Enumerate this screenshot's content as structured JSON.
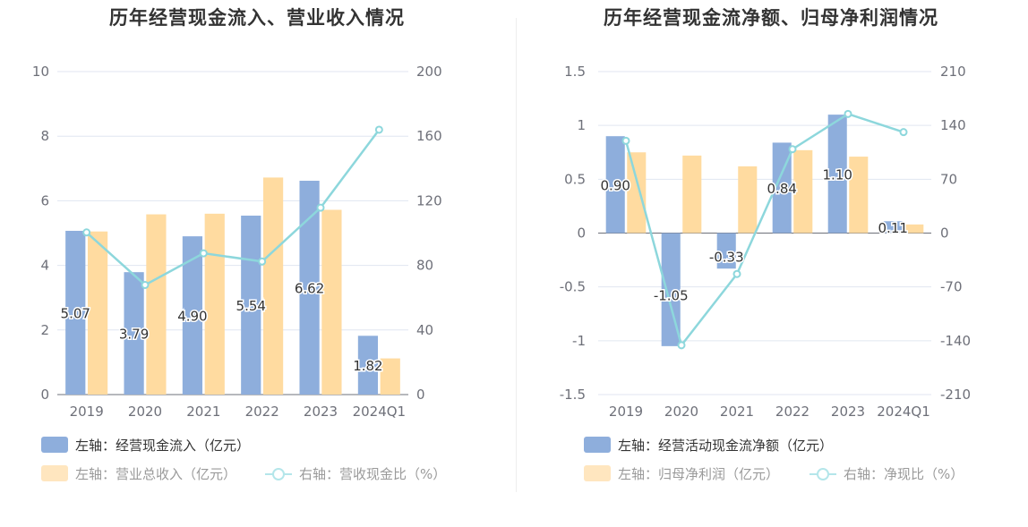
{
  "chart_data": [
    {
      "type": "bar",
      "title": "历年经营现金流入、营业收入情况",
      "categories": [
        "2019",
        "2020",
        "2021",
        "2022",
        "2023",
        "2024Q1"
      ],
      "left_axis": {
        "ylim": [
          0,
          10
        ],
        "ticks": [
          "0",
          "2",
          "4",
          "6",
          "8",
          "10"
        ]
      },
      "right_axis": {
        "ylim": [
          0,
          200
        ],
        "ticks": [
          "0",
          "40",
          "80",
          "120",
          "160",
          "200"
        ]
      },
      "series": [
        {
          "name": "左轴：经营现金流入（亿元）",
          "axis": "left",
          "kind": "bar",
          "color": "#8eaedc",
          "values": [
            5.07,
            3.79,
            4.9,
            5.54,
            6.62,
            1.82
          ],
          "labels": [
            "5.07",
            "3.79",
            "4.90",
            "5.54",
            "6.62",
            "1.82"
          ]
        },
        {
          "name": "左轴：营业总收入（亿元）",
          "axis": "left",
          "kind": "bar",
          "color": "#ffdba0",
          "values": [
            5.05,
            5.58,
            5.6,
            6.72,
            5.72,
            1.12
          ]
        },
        {
          "name": "右轴：营收现金比（%）",
          "axis": "right",
          "kind": "line",
          "color": "#8dd7dc",
          "values": [
            100.4,
            67.9,
            87.5,
            82.4,
            115.7,
            164.0
          ]
        }
      ],
      "grid": true,
      "legend_position": "bottom"
    },
    {
      "type": "bar",
      "title": "历年经营现金流净额、归母净利润情况",
      "categories": [
        "2019",
        "2020",
        "2021",
        "2022",
        "2023",
        "2024Q1"
      ],
      "left_axis": {
        "ylim": [
          -1.5,
          1.5
        ],
        "ticks": [
          "-1.5",
          "-1",
          "-0.5",
          "0",
          "0.5",
          "1",
          "1.5"
        ]
      },
      "right_axis": {
        "ylim": [
          -210,
          210
        ],
        "ticks": [
          "-210",
          "-140",
          "-70",
          "0",
          "70",
          "140",
          "210"
        ]
      },
      "series": [
        {
          "name": "左轴：经营活动现金流净额（亿元）",
          "axis": "left",
          "kind": "bar",
          "color": "#8eaedc",
          "values": [
            0.9,
            -1.05,
            -0.33,
            0.84,
            1.1,
            0.11
          ],
          "labels": [
            "0.90",
            "-1.05",
            "-0.33",
            "0.84",
            "1.10",
            "0.11"
          ]
        },
        {
          "name": "左轴：归母净利润（亿元）",
          "axis": "left",
          "kind": "bar",
          "color": "#ffdba0",
          "values": [
            0.75,
            0.72,
            0.62,
            0.77,
            0.71,
            0.08
          ]
        },
        {
          "name": "右轴：净现比（%）",
          "axis": "right",
          "kind": "line",
          "color": "#8dd7dc",
          "values": [
            120.0,
            -145.8,
            -53.2,
            109.1,
            154.9,
            131.3
          ]
        }
      ],
      "grid": true,
      "legend_position": "bottom"
    }
  ]
}
